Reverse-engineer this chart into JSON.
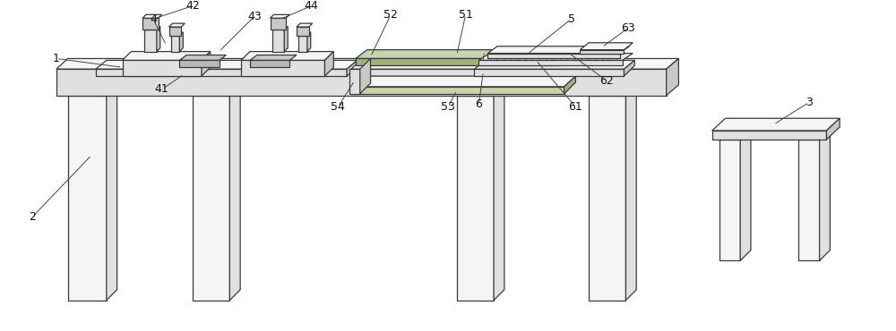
{
  "fig_width": 10.0,
  "fig_height": 3.7,
  "dpi": 100,
  "bg_color": "#ffffff",
  "lc": "#3a3a3a",
  "lw": 0.9,
  "fl": "#f5f5f5",
  "fm": "#e0e0e0",
  "fd": "#c8c8c8",
  "fg": "#c8d4b0",
  "fgd": "#a0b080"
}
